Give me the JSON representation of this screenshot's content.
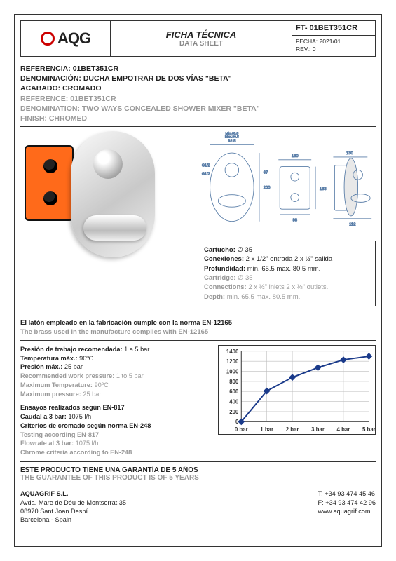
{
  "header": {
    "brand": "AQG",
    "title_es": "FICHA TÉCNICA",
    "title_en": "DATA SHEET",
    "code": "FT- 01BET351CR",
    "fecha_label": "FECHA:",
    "fecha": "2021/01",
    "rev_label": "REV.:",
    "rev": "0"
  },
  "reference": {
    "ref_es_label": "REFERENCIA:",
    "ref_value": "01BET351CR",
    "denom_es_label": "DENOMINACIÓN:",
    "denom_es": "DUCHA EMPOTRAR DE DOS VÍAS \"BETA\"",
    "finish_es_label": "ACABADO:",
    "finish_es": "CROMADO",
    "ref_en_label": "REFERENCE:",
    "denom_en_label": "DENOMINATION:",
    "denom_en": "TWO WAYS CONCEALED SHOWER MIXER \"BETA\"",
    "finish_en_label": "FINISH:",
    "finish_en": "CHROMED"
  },
  "drawing_dims": {
    "top_w1": "92.5",
    "top_max": "Max.80.5",
    "top_min": "Min.65.5",
    "width_130": "130",
    "height_200": "200",
    "g12": "G1/2",
    "box_w": "98",
    "box_h": "133",
    "side_112": "112",
    "h67": "67"
  },
  "specbox": {
    "cartucho_label": "Cartucho:",
    "cartucho": "∅ 35",
    "conex_label": "Conexiones:",
    "conex": "2 x 1/2\" entrada 2 x ½\" salida",
    "prof_label": "Profundidad:",
    "prof": "min. 65.5 max. 80.5 mm.",
    "cartridge_label": "Cartridge:",
    "connections_label": "Connections:",
    "connections": "2 x ½\" inlets 2 x ½\" outlets.",
    "depth_label": "Depth:",
    "depth": "min. 65.5 max. 80.5 mm."
  },
  "compliance": {
    "es": "El latón empleado en la fabricación cumple con la norma EN-12165",
    "en": "The brass used in the manufacture complies with EN-12165"
  },
  "params": {
    "presion_trabajo_label": "Presión de trabajo recomendada:",
    "presion_trabajo": "1 a 5 bar",
    "temp_max_label": "Temperatura máx.:",
    "temp_max": "90ºC",
    "presion_max_label": "Presión máx.:",
    "presion_max": "25 bar",
    "rec_work_pressure_label": "Recommended work pressure:",
    "rec_work_pressure": "1 to 5 bar",
    "max_temp_label": "Maximum Temperature:",
    "max_temp": "90ºC",
    "max_pressure_label": "Maximum pressure:",
    "max_pressure": "25 bar",
    "ensayos_label": "Ensayos realizados según EN-817",
    "caudal_label": "Caudal a 3 bar:",
    "caudal": "1075 l/h",
    "cromado_label": "Criterios de cromado según norma EN-248",
    "testing_label": "Testing according EN-817",
    "flowrate_label": "Flowrate at 3 bar:",
    "flowrate": "1075 l/h",
    "chrome_label": "Chrome criteria according to EN-248"
  },
  "chart": {
    "type": "line",
    "x_unit": "bar",
    "x_ticks": [
      "0 bar",
      "1 bar",
      "2 bar",
      "3 bar",
      "4 bar",
      "5 bar"
    ],
    "y_max": 1400,
    "y_step": 200,
    "y_ticks": [
      0,
      200,
      400,
      600,
      800,
      1000,
      1200,
      1400
    ],
    "series": [
      {
        "x": 0,
        "y": 0
      },
      {
        "x": 1,
        "y": 610
      },
      {
        "x": 2,
        "y": 880
      },
      {
        "x": 3,
        "y": 1075
      },
      {
        "x": 4,
        "y": 1230
      },
      {
        "x": 5,
        "y": 1300
      }
    ],
    "line_color": "#1a3a8a",
    "line_width": 2,
    "marker": "diamond",
    "marker_size": 5,
    "grid_color": "#bdbdbd",
    "axis_color": "#333333",
    "background_color": "#ffffff",
    "tick_fontsize": 8
  },
  "warranty": {
    "es": "ESTE PRODUCTO TIENE UNA GARANTÍA DE 5 AÑOS",
    "en": "THE GUARANTEE OF THIS PRODUCT IS OF 5 YEARS"
  },
  "footer": {
    "company": "AQUAGRIF S.L.",
    "addr1": "Avda. Mare de Déu de Montserrat 35",
    "addr2": "08970 Sant Joan Despí",
    "addr3": "Barcelona - Spain",
    "tel": "T: +34 93 474 45 46",
    "fax": "F: +34 93 474 42 96",
    "web": "www.aquagrif.com"
  },
  "colors": {
    "brand_red": "#c00000",
    "text_grey": "#999999",
    "box_orange": "#ff6a1a",
    "border": "#333333"
  }
}
